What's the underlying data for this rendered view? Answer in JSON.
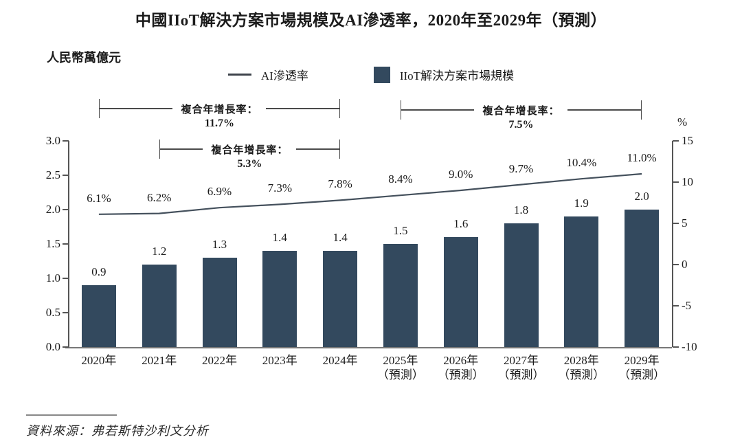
{
  "title": "中國IIoT解決方案市場規模及AI滲透率，2020年至2029年（預測）",
  "unit_label": "人民幣萬億元",
  "legend": {
    "items": [
      {
        "marker": "line",
        "label": "AI滲透率"
      },
      {
        "marker": "square",
        "label": "IIoT解決方案市場規模"
      }
    ]
  },
  "source": "資料來源：弗若斯特沙利文分析",
  "colors": {
    "bar": "#33495E",
    "line": "#44505C",
    "axis": "#555555",
    "baseline": "#777777",
    "text": "#1b1b1b"
  },
  "chart_data": {
    "type": "bar",
    "subtype": "bar+line dual-axis",
    "categories": [
      "2020年",
      "2021年",
      "2022年",
      "2023年",
      "2024年",
      "2025年",
      "2026年",
      "2027年",
      "2028年",
      "2029年"
    ],
    "category_subnotes": [
      "",
      "",
      "",
      "",
      "",
      "（預測）",
      "（預測）",
      "（預測）",
      "（預測）",
      "（預測）"
    ],
    "series": [
      {
        "name": "IIoT解決方案市場規模",
        "type": "bar",
        "axis": "left",
        "values": [
          0.9,
          1.2,
          1.3,
          1.4,
          1.4,
          1.5,
          1.6,
          1.8,
          1.9,
          2.0
        ],
        "labels": [
          "0.9",
          "1.2",
          "1.3",
          "1.4",
          "1.4",
          "1.5",
          "1.6",
          "1.8",
          "1.9",
          "2.0"
        ]
      },
      {
        "name": "AI滲透率",
        "type": "line",
        "axis": "right",
        "values": [
          6.1,
          6.2,
          6.9,
          7.3,
          7.8,
          8.4,
          9.0,
          9.7,
          10.4,
          11.0
        ],
        "labels": [
          "6.1%",
          "6.2%",
          "6.9%",
          "7.3%",
          "7.8%",
          "8.4%",
          "9.0%",
          "9.7%",
          "10.4%",
          "11.0%"
        ]
      }
    ],
    "left_axis": {
      "title": "人民幣萬億元",
      "min": 0.0,
      "max": 3.0,
      "step": 0.5,
      "tick_labels": [
        "3.0",
        "2.5",
        "2.0",
        "1.5",
        "1.0",
        "0.5",
        "0.0"
      ]
    },
    "right_axis": {
      "title": "%",
      "min": -10,
      "max": 15,
      "step": 5,
      "tick_labels": [
        "15",
        "10",
        "5",
        "0",
        "-5",
        "-10"
      ]
    },
    "annotations": [
      {
        "label": "複合年增長率：",
        "value": "11.7%",
        "from_index": 0,
        "to_index": 4,
        "y": 158
      },
      {
        "label": "複合年增長率：",
        "value": "5.3%",
        "from_index": 1,
        "to_index": 4,
        "y": 217
      },
      {
        "label": "複合年增長率：",
        "value": "7.5%",
        "from_index": 5,
        "to_index": 9,
        "y": 160
      }
    ],
    "legend_position": "top",
    "grid": false
  }
}
